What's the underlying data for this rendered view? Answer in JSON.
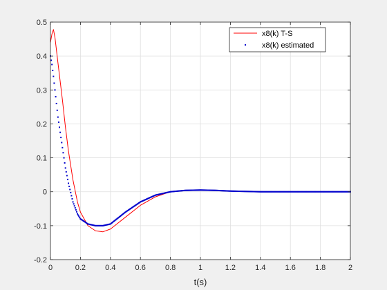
{
  "chart_data": {
    "type": "line",
    "title": "",
    "xlabel": "t(s)",
    "ylabel": "",
    "xlim": [
      0,
      2
    ],
    "ylim": [
      -0.2,
      0.5
    ],
    "xticks": [
      0,
      0.2,
      0.4,
      0.6,
      0.8,
      1,
      1.2,
      1.4,
      1.6,
      1.8,
      2
    ],
    "xtick_labels": [
      "0",
      "0.2",
      "0.4",
      "0.6",
      "0.8",
      "1",
      "1.2",
      "1.4",
      "1.6",
      "1.8",
      "2"
    ],
    "yticks": [
      -0.2,
      -0.1,
      0,
      0.1,
      0.2,
      0.3,
      0.4,
      0.5
    ],
    "ytick_labels": [
      "-0.2",
      "-0.1",
      "0",
      "0.1",
      "0.2",
      "0.3",
      "0.4",
      "0.5"
    ],
    "grid": true,
    "legend_position": "top-right",
    "series": [
      {
        "name": "x8(k) T-S",
        "style": "solid-line",
        "color": "#ff0000",
        "x": [
          0,
          0.01,
          0.02,
          0.03,
          0.05,
          0.08,
          0.1,
          0.12,
          0.15,
          0.18,
          0.2,
          0.25,
          0.3,
          0.35,
          0.4,
          0.5,
          0.6,
          0.7,
          0.8,
          0.9,
          1.0,
          1.1,
          1.2,
          1.3,
          1.4,
          1.6,
          1.8,
          2.0
        ],
        "y": [
          0.44,
          0.465,
          0.478,
          0.455,
          0.38,
          0.27,
          0.19,
          0.12,
          0.035,
          -0.03,
          -0.06,
          -0.1,
          -0.115,
          -0.118,
          -0.11,
          -0.075,
          -0.04,
          -0.015,
          0.0,
          0.004,
          0.005,
          0.004,
          0.002,
          0.001,
          0.0,
          0.0,
          0.0,
          0.0
        ]
      },
      {
        "name": "x8(k) estimated",
        "style": "dotted",
        "color": "#0000cc",
        "x": [
          0,
          0.01,
          0.02,
          0.03,
          0.05,
          0.08,
          0.1,
          0.12,
          0.15,
          0.18,
          0.2,
          0.25,
          0.3,
          0.35,
          0.4,
          0.5,
          0.6,
          0.7,
          0.8,
          0.9,
          1.0,
          1.1,
          1.2,
          1.3,
          1.4,
          1.6,
          1.8,
          2.0
        ],
        "y": [
          0.4,
          0.375,
          0.34,
          0.3,
          0.22,
          0.13,
          0.07,
          0.025,
          -0.03,
          -0.065,
          -0.08,
          -0.095,
          -0.1,
          -0.1,
          -0.095,
          -0.06,
          -0.03,
          -0.01,
          0.0,
          0.004,
          0.005,
          0.004,
          0.002,
          0.001,
          0.0,
          0.0,
          0.0,
          0.0
        ]
      }
    ]
  }
}
